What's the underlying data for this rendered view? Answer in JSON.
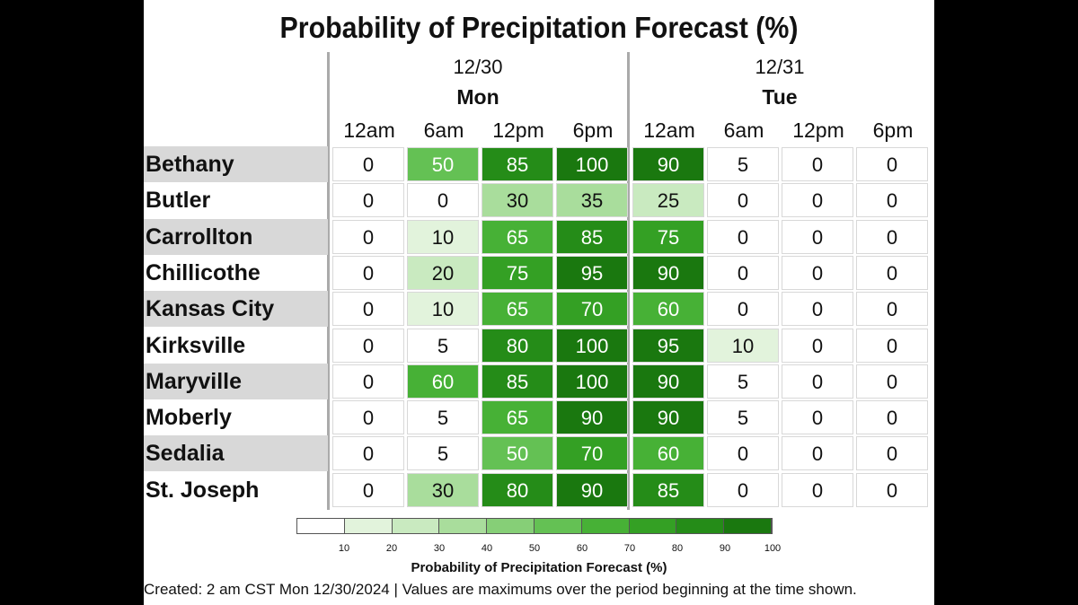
{
  "chart_data": {
    "type": "heatmap",
    "title": "Probability of Precipitation Forecast (%)",
    "days": [
      {
        "date": "12/30",
        "name": "Mon"
      },
      {
        "date": "12/31",
        "name": "Tue"
      }
    ],
    "columns": [
      "12am",
      "6am",
      "12pm",
      "6pm",
      "12am",
      "6am",
      "12pm",
      "6pm"
    ],
    "rows": [
      {
        "name": "Bethany",
        "values": [
          0,
          50,
          85,
          100,
          90,
          5,
          0,
          0
        ]
      },
      {
        "name": "Butler",
        "values": [
          0,
          0,
          30,
          35,
          25,
          0,
          0,
          0
        ]
      },
      {
        "name": "Carrollton",
        "values": [
          0,
          10,
          65,
          85,
          75,
          0,
          0,
          0
        ]
      },
      {
        "name": "Chillicothe",
        "values": [
          0,
          20,
          75,
          95,
          90,
          0,
          0,
          0
        ]
      },
      {
        "name": "Kansas City",
        "values": [
          0,
          10,
          65,
          70,
          60,
          0,
          0,
          0
        ]
      },
      {
        "name": "Kirksville",
        "values": [
          0,
          5,
          80,
          100,
          95,
          10,
          0,
          0
        ]
      },
      {
        "name": "Maryville",
        "values": [
          0,
          60,
          85,
          100,
          90,
          5,
          0,
          0
        ]
      },
      {
        "name": "Moberly",
        "values": [
          0,
          5,
          65,
          90,
          90,
          5,
          0,
          0
        ]
      },
      {
        "name": "Sedalia",
        "values": [
          0,
          5,
          50,
          70,
          60,
          0,
          0,
          0
        ]
      },
      {
        "name": "St. Joseph",
        "values": [
          0,
          30,
          80,
          90,
          85,
          0,
          0,
          0
        ]
      }
    ],
    "legend": {
      "title": "Probability of Precipitation Forecast (%)",
      "ticks": [
        10,
        20,
        30,
        40,
        50,
        60,
        70,
        80,
        90,
        100
      ],
      "colors": [
        "#ffffff",
        "#e2f3dc",
        "#c9eac0",
        "#a9dd9c",
        "#86cf77",
        "#64c154",
        "#47b136",
        "#34a024",
        "#258c18",
        "#1a780f"
      ]
    }
  },
  "footer": "Created: 2 am CST Mon 12/30/2024  |  Values are maximums over the period beginning at the time shown."
}
